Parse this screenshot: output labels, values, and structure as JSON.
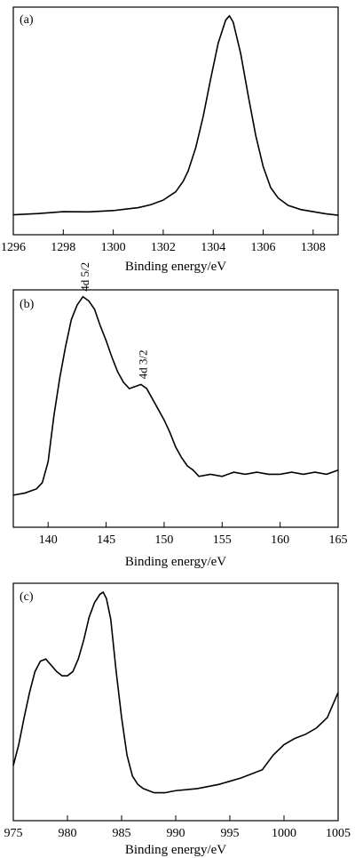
{
  "chart_data": [
    {
      "type": "line",
      "panel_label": "(a)",
      "xlabel": "Binding energy/eV",
      "ylabel": "",
      "xlim": [
        1296,
        1309
      ],
      "ylim": [
        0,
        1
      ],
      "xticks": [
        1296,
        1298,
        1300,
        1302,
        1304,
        1306,
        1308
      ],
      "grid": false,
      "series": [
        {
          "x": [
            1296,
            1297,
            1298,
            1299,
            1300,
            1300.5,
            1301,
            1301.5,
            1302,
            1302.5,
            1302.8,
            1303,
            1303.3,
            1303.6,
            1303.9,
            1304.2,
            1304.5,
            1304.65,
            1304.8,
            1305.1,
            1305.4,
            1305.7,
            1306,
            1306.3,
            1306.6,
            1307,
            1307.5,
            1308,
            1308.5,
            1309
          ],
          "y": [
            0.03,
            0.036,
            0.045,
            0.044,
            0.05,
            0.057,
            0.064,
            0.078,
            0.1,
            0.14,
            0.19,
            0.24,
            0.35,
            0.5,
            0.68,
            0.85,
            0.96,
            0.98,
            0.95,
            0.8,
            0.6,
            0.41,
            0.26,
            0.16,
            0.11,
            0.075,
            0.055,
            0.045,
            0.035,
            0.028
          ]
        }
      ],
      "annotations": []
    },
    {
      "type": "line",
      "panel_label": "(b)",
      "xlabel": "Binding energy/eV",
      "ylabel": "",
      "xlim": [
        137,
        165
      ],
      "ylim": [
        0,
        1
      ],
      "xticks": [
        140,
        145,
        150,
        155,
        160,
        165
      ],
      "grid": false,
      "series": [
        {
          "x": [
            137,
            138,
            139,
            139.5,
            140,
            140.5,
            141,
            141.5,
            142,
            142.5,
            143,
            143.5,
            144,
            144.5,
            145,
            145.5,
            146,
            146.5,
            147,
            147.5,
            148,
            148.5,
            149,
            149.5,
            150,
            150.5,
            151,
            151.5,
            152,
            152.5,
            153,
            154,
            155,
            156,
            157,
            158,
            159,
            160,
            161,
            162,
            163,
            164,
            165
          ],
          "y": [
            0.04,
            0.05,
            0.07,
            0.1,
            0.2,
            0.42,
            0.6,
            0.75,
            0.88,
            0.95,
            0.99,
            0.97,
            0.93,
            0.85,
            0.78,
            0.7,
            0.63,
            0.58,
            0.55,
            0.56,
            0.57,
            0.55,
            0.5,
            0.45,
            0.4,
            0.34,
            0.27,
            0.22,
            0.18,
            0.16,
            0.13,
            0.14,
            0.13,
            0.15,
            0.14,
            0.15,
            0.14,
            0.14,
            0.15,
            0.14,
            0.15,
            0.14,
            0.16
          ]
        }
      ],
      "annotations": [
        {
          "text": "4d 5/2",
          "x": 143.2
        },
        {
          "text": "4d 3/2",
          "x": 148.2
        }
      ]
    },
    {
      "type": "line",
      "panel_label": "(c)",
      "xlabel": "Binding energy/eV",
      "ylabel": "",
      "xlim": [
        975,
        1005
      ],
      "ylim": [
        0,
        1
      ],
      "xticks": [
        975,
        980,
        985,
        990,
        995,
        1000,
        1005
      ],
      "grid": false,
      "series": [
        {
          "x": [
            975,
            975.5,
            976,
            976.5,
            977,
            977.5,
            978,
            978.5,
            979,
            979.5,
            980,
            980.5,
            981,
            981.5,
            982,
            982.5,
            983,
            983.3,
            983.6,
            984,
            984.5,
            985,
            985.5,
            986,
            986.5,
            987,
            988,
            989,
            990,
            992,
            994,
            996,
            998,
            999,
            1000,
            1001,
            1002,
            1003,
            1004,
            1004.5,
            1005
          ],
          "y": [
            0.15,
            0.25,
            0.38,
            0.5,
            0.6,
            0.65,
            0.66,
            0.63,
            0.6,
            0.58,
            0.58,
            0.6,
            0.66,
            0.75,
            0.86,
            0.93,
            0.97,
            0.98,
            0.95,
            0.85,
            0.6,
            0.38,
            0.2,
            0.1,
            0.06,
            0.04,
            0.02,
            0.02,
            0.03,
            0.04,
            0.06,
            0.09,
            0.13,
            0.2,
            0.25,
            0.28,
            0.3,
            0.33,
            0.38,
            0.44,
            0.5
          ]
        }
      ],
      "annotations": []
    }
  ]
}
